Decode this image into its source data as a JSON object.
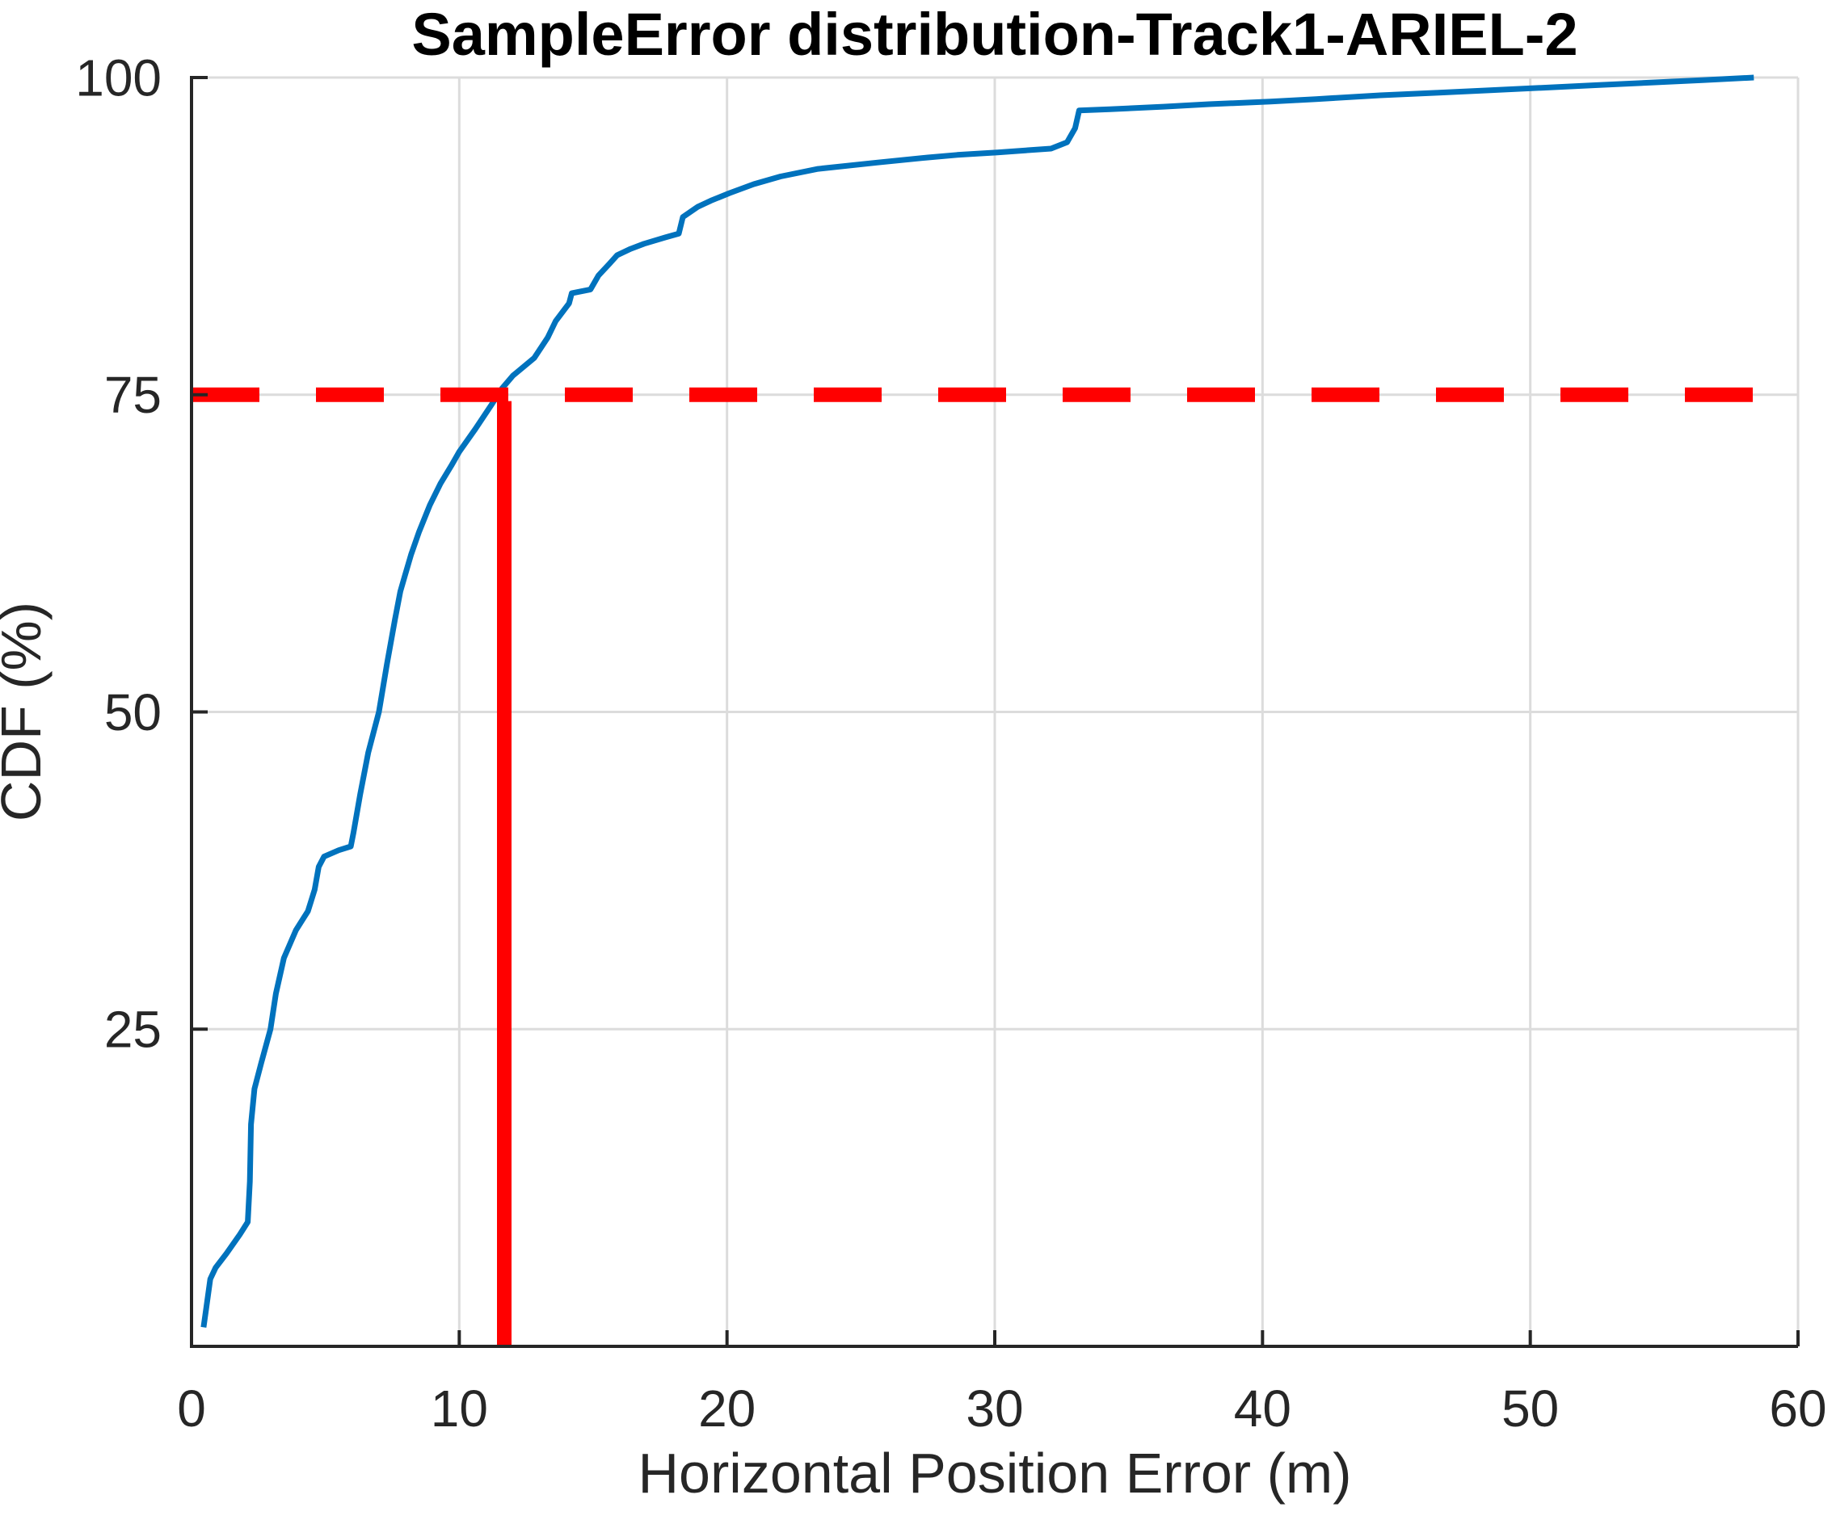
{
  "figure": {
    "background": "#FFFFFF"
  },
  "colors": {
    "curve": "#0072BD",
    "highlight": "#FF0000",
    "axis": "#262626",
    "grid": "#DCDCDC",
    "tick_text": "#262626"
  },
  "chart_data": {
    "type": "line",
    "title": "SampleError distribution-Track1-ARIEL-2",
    "xlabel": "Horizontal Position Error (m)",
    "ylabel": "CDF (%)",
    "xlim": [
      0,
      60
    ],
    "ylim": [
      0,
      100
    ],
    "xticks": [
      0,
      10,
      20,
      30,
      40,
      50,
      60
    ],
    "yticks": [
      25,
      50,
      75,
      100
    ],
    "grid": true,
    "legend_position": "none",
    "series": [
      {
        "name": "cdf-curve",
        "type": "line",
        "style": "solid",
        "color": "#0072BD",
        "width": 7,
        "points": [
          [
            0.45,
            1.5
          ],
          [
            0.55,
            3.0
          ],
          [
            0.7,
            5.3
          ],
          [
            0.9,
            6.2
          ],
          [
            1.3,
            7.3
          ],
          [
            1.8,
            8.8
          ],
          [
            2.1,
            9.8
          ],
          [
            2.18,
            13.0
          ],
          [
            2.22,
            17.5
          ],
          [
            2.35,
            20.3
          ],
          [
            2.6,
            22.3
          ],
          [
            2.95,
            25.0
          ],
          [
            3.15,
            27.8
          ],
          [
            3.45,
            30.6
          ],
          [
            3.9,
            32.8
          ],
          [
            4.35,
            34.3
          ],
          [
            4.6,
            36.0
          ],
          [
            4.75,
            37.8
          ],
          [
            4.95,
            38.6
          ],
          [
            5.5,
            39.1
          ],
          [
            5.95,
            39.4
          ],
          [
            6.05,
            40.5
          ],
          [
            6.3,
            43.5
          ],
          [
            6.6,
            46.8
          ],
          [
            7.0,
            50.0
          ],
          [
            7.3,
            53.8
          ],
          [
            7.6,
            57.3
          ],
          [
            7.8,
            59.5
          ],
          [
            7.95,
            60.6
          ],
          [
            8.2,
            62.4
          ],
          [
            8.5,
            64.2
          ],
          [
            8.9,
            66.3
          ],
          [
            9.3,
            68.0
          ],
          [
            9.7,
            69.4
          ],
          [
            10.0,
            70.5
          ],
          [
            10.6,
            72.3
          ],
          [
            11.2,
            74.2
          ],
          [
            11.6,
            75.5
          ],
          [
            12.0,
            76.5
          ],
          [
            12.8,
            77.9
          ],
          [
            13.3,
            79.5
          ],
          [
            13.6,
            80.8
          ],
          [
            14.1,
            82.2
          ],
          [
            14.2,
            83.0
          ],
          [
            14.9,
            83.3
          ],
          [
            15.2,
            84.4
          ],
          [
            15.6,
            85.3
          ],
          [
            15.9,
            86.0
          ],
          [
            16.4,
            86.5
          ],
          [
            16.9,
            86.9
          ],
          [
            17.7,
            87.4
          ],
          [
            18.2,
            87.7
          ],
          [
            18.35,
            89.0
          ],
          [
            18.9,
            89.8
          ],
          [
            19.4,
            90.3
          ],
          [
            20.1,
            90.9
          ],
          [
            21.0,
            91.6
          ],
          [
            22.0,
            92.2
          ],
          [
            23.4,
            92.8
          ],
          [
            25.6,
            93.3
          ],
          [
            27.5,
            93.7
          ],
          [
            28.6,
            93.9
          ],
          [
            30.1,
            94.1
          ],
          [
            32.1,
            94.4
          ],
          [
            32.7,
            94.9
          ],
          [
            33.0,
            96.0
          ],
          [
            33.15,
            97.4
          ],
          [
            34.3,
            97.5
          ],
          [
            36.3,
            97.7
          ],
          [
            38.0,
            97.9
          ],
          [
            40.3,
            98.1
          ],
          [
            42.0,
            98.3
          ],
          [
            44.4,
            98.6
          ],
          [
            46.5,
            98.8
          ],
          [
            48.5,
            99.0
          ],
          [
            50.5,
            99.2
          ],
          [
            52.5,
            99.4
          ],
          [
            54.5,
            99.6
          ],
          [
            56.5,
            99.8
          ],
          [
            58.35,
            100.0
          ]
        ]
      },
      {
        "name": "percentile-75-horizontal-line",
        "type": "line",
        "style": "dashed",
        "color": "#FF0000",
        "width": 18,
        "dash": [
          84,
          70
        ],
        "points": [
          [
            0,
            75
          ],
          [
            58.4,
            75
          ]
        ]
      },
      {
        "name": "percentile-75-vertical-line",
        "type": "line",
        "style": "solid",
        "color": "#FF0000",
        "width": 18,
        "points": [
          [
            11.68,
            0
          ],
          [
            11.68,
            74.5
          ]
        ]
      }
    ]
  }
}
